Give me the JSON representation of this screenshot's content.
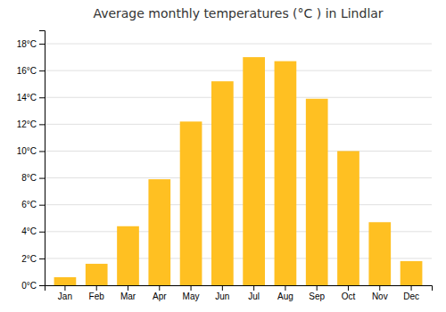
{
  "chart_data": {
    "type": "bar",
    "title": "Average monthly temperatures (°C ) in Lindlar",
    "categories": [
      "Jan",
      "Feb",
      "Mar",
      "Apr",
      "May",
      "Jun",
      "Jul",
      "Aug",
      "Sep",
      "Oct",
      "Nov",
      "Dec"
    ],
    "values": [
      0.6,
      1.6,
      4.4,
      7.9,
      12.2,
      15.2,
      17.0,
      16.7,
      13.9,
      10.0,
      4.7,
      1.8
    ],
    "color": "#FFC022",
    "ylim": [
      0,
      19.0
    ],
    "yticks": [
      {
        "value": 0,
        "label": "0°C"
      },
      {
        "value": 2,
        "label": "2°C"
      },
      {
        "value": 4,
        "label": "4°C"
      },
      {
        "value": 6,
        "label": "6°C"
      },
      {
        "value": 8,
        "label": "8°C"
      },
      {
        "value": 10,
        "label": "10°C"
      },
      {
        "value": 12,
        "label": "12°C"
      },
      {
        "value": 14,
        "label": "14°C"
      },
      {
        "value": 16,
        "label": "16°C"
      },
      {
        "value": 18,
        "label": "18°C"
      }
    ],
    "grid": true
  }
}
